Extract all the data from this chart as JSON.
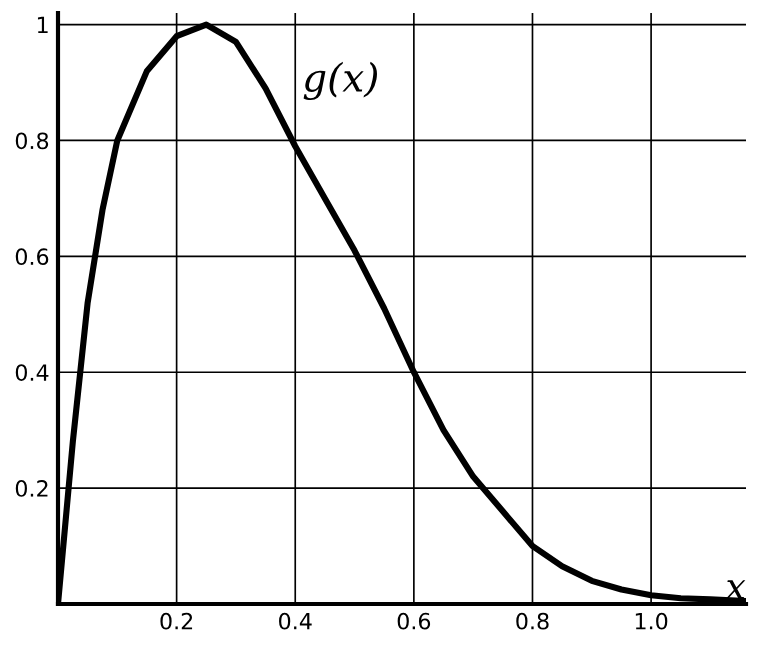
{
  "chart_data": {
    "type": "line",
    "xlabel": "x",
    "annotations": [
      "g(x)"
    ],
    "x": [
      0,
      0.025,
      0.05,
      0.075,
      0.1,
      0.15,
      0.2,
      0.25,
      0.3,
      0.35,
      0.4,
      0.45,
      0.5,
      0.55,
      0.6,
      0.65,
      0.7,
      0.75,
      0.8,
      0.85,
      0.9,
      0.95,
      1.0,
      1.05,
      1.1,
      1.16
    ],
    "series": [
      {
        "color": "#000000",
        "values": [
          0,
          0.28,
          0.52,
          0.68,
          0.8,
          0.92,
          0.98,
          1.0,
          0.97,
          0.89,
          0.79,
          0.7,
          0.61,
          0.51,
          0.4,
          0.3,
          0.22,
          0.16,
          0.1,
          0.065,
          0.04,
          0.025,
          0.015,
          0.01,
          0.008,
          0.005
        ]
      }
    ],
    "xlim": [
      0,
      1.16
    ],
    "ylim": [
      0,
      1.02
    ],
    "xticks": [
      {
        "value": 0.2,
        "label": "0.2"
      },
      {
        "value": 0.4,
        "label": "0.4"
      },
      {
        "value": 0.6,
        "label": "0.6"
      },
      {
        "value": 0.8,
        "label": "0.8"
      },
      {
        "value": 1.0,
        "label": "1.0"
      }
    ],
    "yticks": [
      0.2,
      0.4,
      0.6,
      0.8,
      1
    ],
    "grid": true,
    "marker": "none",
    "line_style": "solid",
    "legend": false
  }
}
